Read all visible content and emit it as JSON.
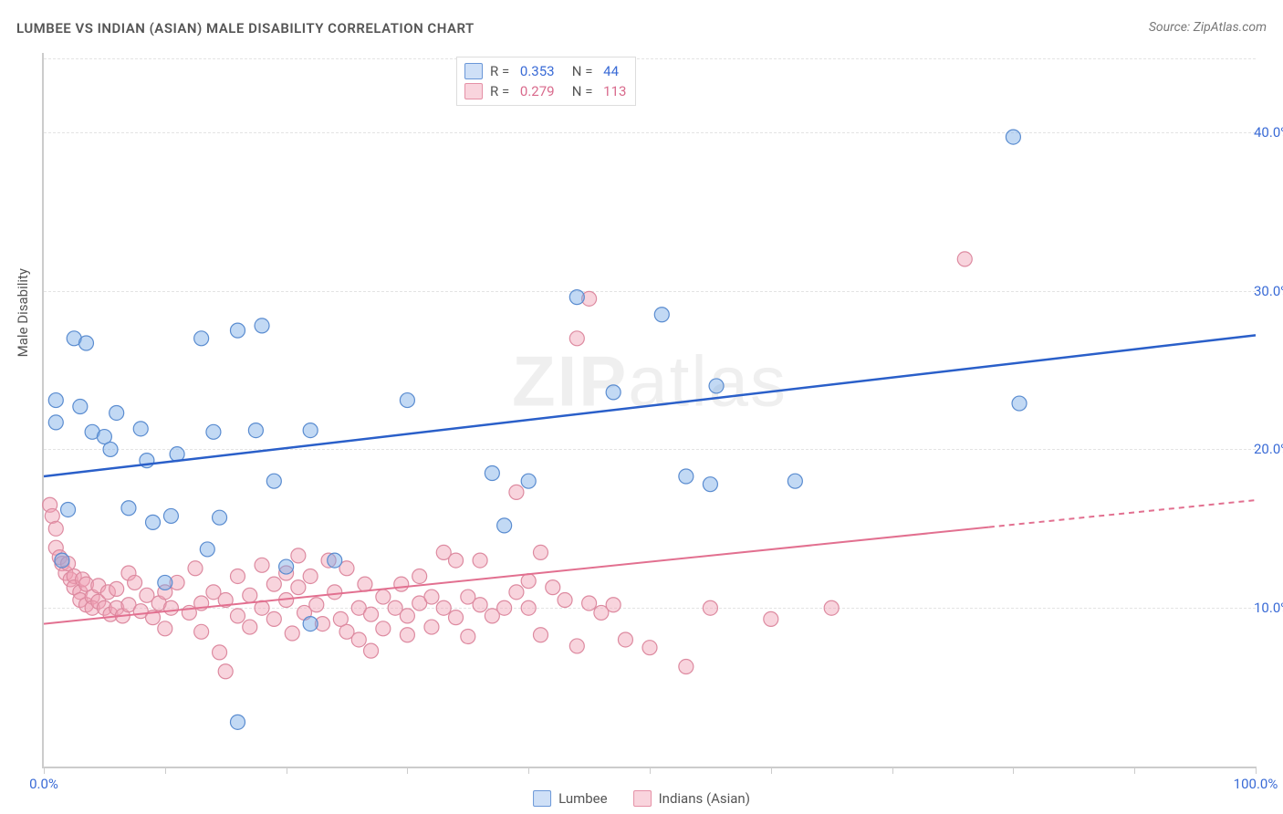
{
  "header": {
    "title": "LUMBEE VS INDIAN (ASIAN) MALE DISABILITY CORRELATION CHART",
    "source": "Source: ZipAtlas.com"
  },
  "axes": {
    "y_label": "Male Disability",
    "xlim": [
      0,
      100
    ],
    "ylim": [
      0,
      45
    ],
    "x_ticks": [
      0,
      10,
      20,
      30,
      40,
      50,
      60,
      70,
      80,
      90,
      100
    ],
    "x_tick_labels": {
      "0": "0.0%",
      "100": "100.0%"
    },
    "y_gridlines": [
      10,
      20,
      30,
      40
    ],
    "y_tick_labels": {
      "10": "10.0%",
      "20": "20.0%",
      "30": "30.0%",
      "40": "40.0%"
    },
    "grid_color": "#e3e3e3",
    "axis_color": "#cccccc",
    "tick_label_color": "#3a6bd6"
  },
  "legend_stats": [
    {
      "color": "blue",
      "R": "0.353",
      "N": "44"
    },
    {
      "color": "pink",
      "R": "0.279",
      "N": "113"
    }
  ],
  "legend_bottom": [
    {
      "color": "blue",
      "label": "Lumbee"
    },
    {
      "color": "pink",
      "label": "Indians (Asian)"
    }
  ],
  "watermark": "ZIPatlas",
  "series": {
    "blue": {
      "color_fill": "#cfe0f7",
      "color_stroke": "#5a8cd0",
      "marker_radius": 8,
      "trend": {
        "x0": 0,
        "y0": 18.3,
        "x1": 100,
        "y1": 27.2,
        "color": "#2a5fc9",
        "width": 2.5
      },
      "points": [
        [
          1,
          21.7
        ],
        [
          1,
          23.1
        ],
        [
          2,
          16.2
        ],
        [
          2.5,
          27.0
        ],
        [
          3,
          22.7
        ],
        [
          3.5,
          26.7
        ],
        [
          4,
          21.1
        ],
        [
          5,
          20.8
        ],
        [
          5.5,
          20.0
        ],
        [
          6,
          22.3
        ],
        [
          7,
          16.3
        ],
        [
          8,
          21.3
        ],
        [
          8.5,
          19.3
        ],
        [
          9,
          15.4
        ],
        [
          10,
          11.6
        ],
        [
          10.5,
          15.8
        ],
        [
          11,
          19.7
        ],
        [
          13,
          27.0
        ],
        [
          13.5,
          13.7
        ],
        [
          14,
          21.1
        ],
        [
          14.5,
          15.7
        ],
        [
          16,
          27.5
        ],
        [
          16,
          2.8
        ],
        [
          17.5,
          21.2
        ],
        [
          18,
          27.8
        ],
        [
          19,
          18.0
        ],
        [
          20,
          12.6
        ],
        [
          22,
          21.2
        ],
        [
          22,
          9.0
        ],
        [
          24,
          13.0
        ],
        [
          30,
          23.1
        ],
        [
          37,
          18.5
        ],
        [
          38,
          15.2
        ],
        [
          40,
          18.0
        ],
        [
          44,
          29.6
        ],
        [
          47,
          23.6
        ],
        [
          51,
          28.5
        ],
        [
          53,
          18.3
        ],
        [
          55,
          17.8
        ],
        [
          55.5,
          24.0
        ],
        [
          62,
          18.0
        ],
        [
          80,
          39.7
        ],
        [
          80.5,
          22.9
        ],
        [
          1.5,
          13.0
        ]
      ]
    },
    "pink": {
      "color_fill": "#f9d4dd",
      "color_stroke": "#e590a6",
      "marker_radius": 8,
      "trend_solid": {
        "x0": 0,
        "y0": 9.0,
        "x1": 78,
        "y1": 15.1,
        "color": "#e27090",
        "width": 2
      },
      "trend_dash": {
        "x0": 78,
        "y0": 15.1,
        "x1": 100,
        "y1": 16.8,
        "color": "#e27090",
        "width": 2
      },
      "points": [
        [
          0.5,
          16.5
        ],
        [
          0.7,
          15.8
        ],
        [
          1,
          15.0
        ],
        [
          1,
          13.8
        ],
        [
          1.3,
          13.2
        ],
        [
          1.5,
          12.8
        ],
        [
          1.8,
          12.2
        ],
        [
          2,
          12.8
        ],
        [
          2.2,
          11.8
        ],
        [
          2.5,
          12.0
        ],
        [
          2.5,
          11.3
        ],
        [
          3,
          11.0
        ],
        [
          3,
          10.5
        ],
        [
          3.2,
          11.8
        ],
        [
          3.5,
          11.5
        ],
        [
          3.5,
          10.2
        ],
        [
          4,
          10.7
        ],
        [
          4,
          10.0
        ],
        [
          4.5,
          11.4
        ],
        [
          4.5,
          10.4
        ],
        [
          5,
          10.0
        ],
        [
          5.3,
          11.0
        ],
        [
          5.5,
          9.6
        ],
        [
          6,
          11.2
        ],
        [
          6,
          10.0
        ],
        [
          6.5,
          9.5
        ],
        [
          7,
          12.2
        ],
        [
          7,
          10.2
        ],
        [
          7.5,
          11.6
        ],
        [
          8,
          9.8
        ],
        [
          8.5,
          10.8
        ],
        [
          9,
          9.4
        ],
        [
          9.5,
          10.3
        ],
        [
          10,
          11.0
        ],
        [
          10,
          8.7
        ],
        [
          10.5,
          10.0
        ],
        [
          11,
          11.6
        ],
        [
          12,
          9.7
        ],
        [
          12.5,
          12.5
        ],
        [
          13,
          10.3
        ],
        [
          13,
          8.5
        ],
        [
          14,
          11.0
        ],
        [
          14.5,
          7.2
        ],
        [
          15,
          10.5
        ],
        [
          15,
          6.0
        ],
        [
          16,
          12.0
        ],
        [
          16,
          9.5
        ],
        [
          17,
          10.8
        ],
        [
          17,
          8.8
        ],
        [
          18,
          12.7
        ],
        [
          18,
          10.0
        ],
        [
          19,
          11.5
        ],
        [
          19,
          9.3
        ],
        [
          20,
          12.2
        ],
        [
          20,
          10.5
        ],
        [
          20.5,
          8.4
        ],
        [
          21,
          13.3
        ],
        [
          21,
          11.3
        ],
        [
          21.5,
          9.7
        ],
        [
          22,
          12.0
        ],
        [
          22.5,
          10.2
        ],
        [
          23,
          9.0
        ],
        [
          23.5,
          13.0
        ],
        [
          24,
          11.0
        ],
        [
          24.5,
          9.3
        ],
        [
          25,
          12.5
        ],
        [
          25,
          8.5
        ],
        [
          26,
          10.0
        ],
        [
          26,
          8.0
        ],
        [
          26.5,
          11.5
        ],
        [
          27,
          9.6
        ],
        [
          27,
          7.3
        ],
        [
          28,
          10.7
        ],
        [
          28,
          8.7
        ],
        [
          29,
          10.0
        ],
        [
          29.5,
          11.5
        ],
        [
          30,
          9.5
        ],
        [
          30,
          8.3
        ],
        [
          31,
          10.3
        ],
        [
          31,
          12.0
        ],
        [
          32,
          10.7
        ],
        [
          32,
          8.8
        ],
        [
          33,
          13.5
        ],
        [
          33,
          10.0
        ],
        [
          34,
          13.0
        ],
        [
          34,
          9.4
        ],
        [
          35,
          10.7
        ],
        [
          35,
          8.2
        ],
        [
          36,
          13.0
        ],
        [
          36,
          10.2
        ],
        [
          37,
          9.5
        ],
        [
          38,
          10.0
        ],
        [
          39,
          17.3
        ],
        [
          39,
          11.0
        ],
        [
          40,
          11.7
        ],
        [
          40,
          10.0
        ],
        [
          41,
          13.5
        ],
        [
          41,
          8.3
        ],
        [
          42,
          11.3
        ],
        [
          43,
          10.5
        ],
        [
          44,
          27.0
        ],
        [
          44,
          7.6
        ],
        [
          45,
          29.5
        ],
        [
          45,
          10.3
        ],
        [
          46,
          9.7
        ],
        [
          47,
          10.2
        ],
        [
          48,
          8.0
        ],
        [
          50,
          7.5
        ],
        [
          53,
          6.3
        ],
        [
          55,
          10.0
        ],
        [
          60,
          9.3
        ],
        [
          65,
          10.0
        ],
        [
          76,
          32.0
        ]
      ]
    }
  }
}
